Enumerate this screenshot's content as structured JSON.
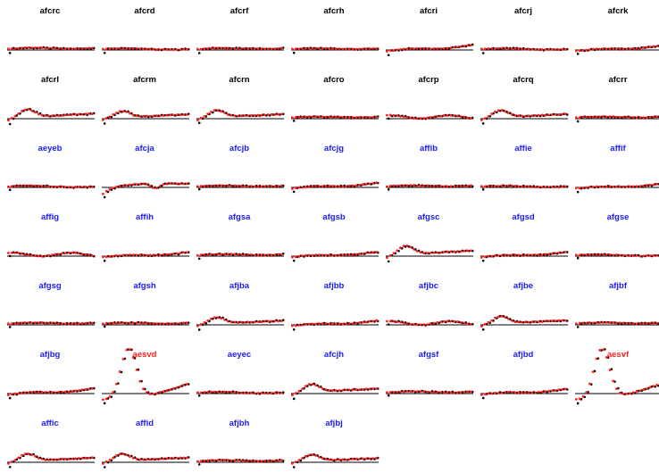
{
  "colors": {
    "black_title": "#000000",
    "blue_title": "#1a1aff",
    "red_title": "#ff2020",
    "observed_points": "#000000",
    "fitted_points": "#ff2020",
    "baseline": "#000000"
  },
  "chart_data": {
    "type": "scatter",
    "layout": "small-multiples",
    "grid": false,
    "legend": "none",
    "points_per_panel": 26,
    "panels": [
      {
        "name": "afcrc",
        "title_color": "black",
        "shape": "gentle",
        "amp": 0.14
      },
      {
        "name": "afcrd",
        "title_color": "black",
        "shape": "flat",
        "amp": 0.09
      },
      {
        "name": "afcrf",
        "title_color": "black",
        "shape": "gentle",
        "amp": 0.12
      },
      {
        "name": "afcrh",
        "title_color": "black",
        "shape": "gentle",
        "amp": 0.11
      },
      {
        "name": "afcri",
        "title_color": "black",
        "shape": "rise",
        "amp": 0.18
      },
      {
        "name": "afcrj",
        "title_color": "black",
        "shape": "flat",
        "amp": 0.09
      },
      {
        "name": "afcrk",
        "title_color": "black",
        "shape": "rise",
        "amp": 0.15
      },
      {
        "name": "afcrl",
        "title_color": "black",
        "shape": "hump",
        "amp": 0.22
      },
      {
        "name": "afcrm",
        "title_color": "black",
        "shape": "hump",
        "amp": 0.18
      },
      {
        "name": "afcrn",
        "title_color": "black",
        "shape": "hump",
        "amp": 0.2
      },
      {
        "name": "afcro",
        "title_color": "black",
        "shape": "gentle",
        "amp": 0.13
      },
      {
        "name": "afcrp",
        "title_color": "black",
        "shape": "wave",
        "amp": 0.13
      },
      {
        "name": "afcrq",
        "title_color": "black",
        "shape": "hump",
        "amp": 0.2
      },
      {
        "name": "afcrr",
        "title_color": "black",
        "shape": "gentle",
        "amp": 0.14
      },
      {
        "name": "aeyeb",
        "title_color": "blue",
        "shape": "flat",
        "amp": 0.1
      },
      {
        "name": "afcja",
        "title_color": "blue",
        "shape": "dip",
        "amp": 0.3
      },
      {
        "name": "afcjb",
        "title_color": "blue",
        "shape": "gentle",
        "amp": 0.12
      },
      {
        "name": "afcjg",
        "title_color": "blue",
        "shape": "rise",
        "amp": 0.16
      },
      {
        "name": "affib",
        "title_color": "blue",
        "shape": "gentle",
        "amp": 0.13
      },
      {
        "name": "affie",
        "title_color": "blue",
        "shape": "flat",
        "amp": 0.09
      },
      {
        "name": "affif",
        "title_color": "blue",
        "shape": "rise",
        "amp": 0.12
      },
      {
        "name": "affig",
        "title_color": "blue",
        "shape": "wave",
        "amp": 0.13
      },
      {
        "name": "affih",
        "title_color": "blue",
        "shape": "rise",
        "amp": 0.14
      },
      {
        "name": "afgsa",
        "title_color": "blue",
        "shape": "gentle",
        "amp": 0.13
      },
      {
        "name": "afgsb",
        "title_color": "blue",
        "shape": "rise",
        "amp": 0.15
      },
      {
        "name": "afgsc",
        "title_color": "blue",
        "shape": "hump",
        "amp": 0.24
      },
      {
        "name": "afgsd",
        "title_color": "blue",
        "shape": "rise",
        "amp": 0.14
      },
      {
        "name": "afgse",
        "title_color": "blue",
        "shape": "flat",
        "amp": 0.09
      },
      {
        "name": "afgsg",
        "title_color": "blue",
        "shape": "gentle",
        "amp": 0.14
      },
      {
        "name": "afgsh",
        "title_color": "blue",
        "shape": "gentle",
        "amp": 0.14
      },
      {
        "name": "afjba",
        "title_color": "blue",
        "shape": "hump",
        "amp": 0.18
      },
      {
        "name": "afjbb",
        "title_color": "blue",
        "shape": "rise",
        "amp": 0.15
      },
      {
        "name": "afjbc",
        "title_color": "blue",
        "shape": "wave",
        "amp": 0.14
      },
      {
        "name": "afjbe",
        "title_color": "blue",
        "shape": "hump",
        "amp": 0.2
      },
      {
        "name": "afjbf",
        "title_color": "blue",
        "shape": "gentle",
        "amp": 0.15
      },
      {
        "name": "afjbg",
        "title_color": "blue",
        "shape": "rise",
        "amp": 0.18
      },
      {
        "name": "aesvd",
        "title_color": "red",
        "shape": "spike",
        "amp": 0.62
      },
      {
        "name": "aeyec",
        "title_color": "blue",
        "shape": "flat",
        "amp": 0.1
      },
      {
        "name": "afcjh",
        "title_color": "blue",
        "shape": "hump",
        "amp": 0.22
      },
      {
        "name": "afgsf",
        "title_color": "blue",
        "shape": "gentle",
        "amp": 0.14
      },
      {
        "name": "afjbd",
        "title_color": "blue",
        "shape": "rise",
        "amp": 0.16
      },
      {
        "name": "aesvf",
        "title_color": "red",
        "shape": "spike",
        "amp": 0.62
      },
      {
        "name": "affic",
        "title_color": "blue",
        "shape": "hump",
        "amp": 0.2
      },
      {
        "name": "affid",
        "title_color": "blue",
        "shape": "hump",
        "amp": 0.2
      },
      {
        "name": "afjbh",
        "title_color": "blue",
        "shape": "gentle",
        "amp": 0.14
      },
      {
        "name": "afjbj",
        "title_color": "blue",
        "shape": "hump",
        "amp": 0.18
      }
    ]
  }
}
